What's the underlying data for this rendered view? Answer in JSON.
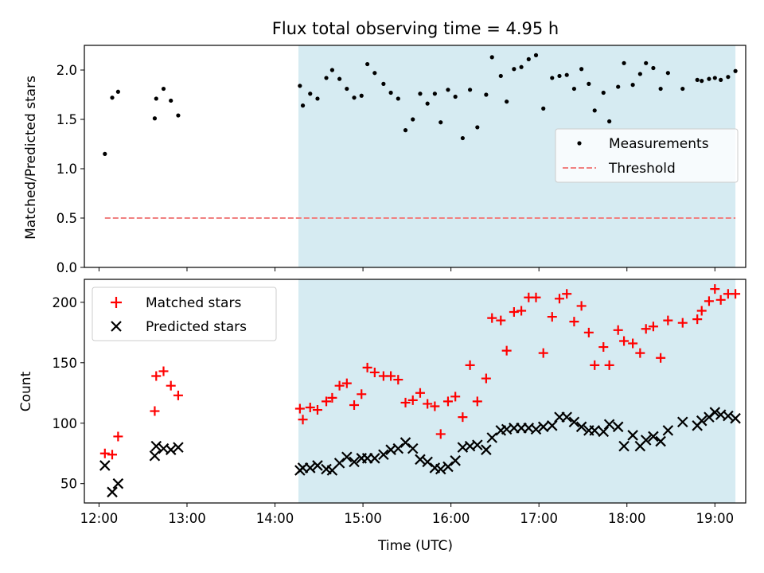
{
  "chart_data": [
    {
      "type": "scatter",
      "title": "Flux total observing time = 4.95 h",
      "xlabel": "",
      "ylabel": "Matched/Predicted stars",
      "xlim": [
        "11:50",
        "19:21"
      ],
      "ylim": [
        0,
        2.25
      ],
      "yticks": [
        "0.0",
        "0.5",
        "1.0",
        "1.5",
        "2.0"
      ],
      "grid": false,
      "legend_position": "center-right",
      "shaded_span": {
        "start": "14:16",
        "end": "19:14",
        "color": "#add8e6"
      },
      "series": [
        {
          "name": "Measurements",
          "marker": "dot",
          "color": "#000000",
          "points": [
            [
              "12:04",
              1.15
            ],
            [
              "12:09",
              1.72
            ],
            [
              "12:13",
              1.78
            ],
            [
              "12:38",
              1.51
            ],
            [
              "12:39",
              1.71
            ],
            [
              "12:44",
              1.81
            ],
            [
              "12:49",
              1.69
            ],
            [
              "12:54",
              1.54
            ],
            [
              "14:17",
              1.84
            ],
            [
              "14:19",
              1.64
            ],
            [
              "14:24",
              1.76
            ],
            [
              "14:29",
              1.71
            ],
            [
              "14:35",
              1.92
            ],
            [
              "14:39",
              2.0
            ],
            [
              "14:44",
              1.91
            ],
            [
              "14:49",
              1.81
            ],
            [
              "14:54",
              1.72
            ],
            [
              "14:59",
              1.74
            ],
            [
              "15:03",
              2.06
            ],
            [
              "15:08",
              1.97
            ],
            [
              "15:14",
              1.86
            ],
            [
              "15:19",
              1.77
            ],
            [
              "15:24",
              1.71
            ],
            [
              "15:29",
              1.39
            ],
            [
              "15:34",
              1.5
            ],
            [
              "15:39",
              1.76
            ],
            [
              "15:44",
              1.66
            ],
            [
              "15:49",
              1.76
            ],
            [
              "15:53",
              1.47
            ],
            [
              "15:58",
              1.8
            ],
            [
              "16:03",
              1.73
            ],
            [
              "16:08",
              1.31
            ],
            [
              "16:13",
              1.8
            ],
            [
              "16:18",
              1.42
            ],
            [
              "16:24",
              1.75
            ],
            [
              "16:28",
              2.13
            ],
            [
              "16:34",
              1.94
            ],
            [
              "16:38",
              1.68
            ],
            [
              "16:43",
              2.01
            ],
            [
              "16:48",
              2.03
            ],
            [
              "16:53",
              2.11
            ],
            [
              "16:58",
              2.15
            ],
            [
              "17:03",
              1.61
            ],
            [
              "17:09",
              1.92
            ],
            [
              "17:14",
              1.94
            ],
            [
              "17:19",
              1.95
            ],
            [
              "17:24",
              1.81
            ],
            [
              "17:29",
              2.01
            ],
            [
              "17:34",
              1.86
            ],
            [
              "17:38",
              1.59
            ],
            [
              "17:44",
              1.77
            ],
            [
              "17:48",
              1.48
            ],
            [
              "17:54",
              1.83
            ],
            [
              "17:58",
              2.07
            ],
            [
              "18:04",
              1.85
            ],
            [
              "18:09",
              1.96
            ],
            [
              "18:13",
              2.07
            ],
            [
              "18:18",
              2.02
            ],
            [
              "18:23",
              1.81
            ],
            [
              "18:28",
              1.97
            ],
            [
              "18:38",
              1.81
            ],
            [
              "18:48",
              1.9
            ],
            [
              "18:51",
              1.89
            ],
            [
              "18:56",
              1.91
            ],
            [
              "19:00",
              1.92
            ],
            [
              "19:04",
              1.9
            ],
            [
              "19:09",
              1.93
            ],
            [
              "19:14",
              1.99
            ]
          ]
        },
        {
          "name": "Threshold",
          "marker": "dashed-line",
          "color": "#f08080",
          "points": [
            [
              "12:04",
              0.5
            ],
            [
              "19:14",
              0.5
            ]
          ]
        }
      ]
    },
    {
      "type": "scatter",
      "title": "",
      "xlabel": "Time (UTC)",
      "ylabel": "Count",
      "xlim": [
        "11:50",
        "19:21"
      ],
      "ylim": [
        34,
        219
      ],
      "xticks": [
        "12:00",
        "13:00",
        "14:00",
        "15:00",
        "16:00",
        "17:00",
        "18:00",
        "19:00"
      ],
      "yticks": [
        "50",
        "100",
        "150",
        "200"
      ],
      "grid": false,
      "legend_position": "top-left",
      "shaded_span": {
        "start": "14:16",
        "end": "19:14",
        "color": "#add8e6"
      },
      "series": [
        {
          "name": "Matched stars",
          "marker": "plus",
          "color": "#ff0000",
          "points": [
            [
              "12:04",
              75
            ],
            [
              "12:09",
              74
            ],
            [
              "12:13",
              89
            ],
            [
              "12:38",
              110
            ],
            [
              "12:39",
              139
            ],
            [
              "12:44",
              143
            ],
            [
              "12:49",
              131
            ],
            [
              "12:54",
              123
            ],
            [
              "14:17",
              112
            ],
            [
              "14:19",
              103
            ],
            [
              "14:24",
              113
            ],
            [
              "14:29",
              111
            ],
            [
              "14:35",
              118
            ],
            [
              "14:39",
              121
            ],
            [
              "14:44",
              131
            ],
            [
              "14:49",
              133
            ],
            [
              "14:54",
              115
            ],
            [
              "14:59",
              124
            ],
            [
              "15:03",
              146
            ],
            [
              "15:08",
              142
            ],
            [
              "15:14",
              139
            ],
            [
              "15:19",
              139
            ],
            [
              "15:24",
              136
            ],
            [
              "15:29",
              117
            ],
            [
              "15:34",
              119
            ],
            [
              "15:39",
              125
            ],
            [
              "15:44",
              116
            ],
            [
              "15:49",
              114
            ],
            [
              "15:53",
              91
            ],
            [
              "15:58",
              118
            ],
            [
              "16:03",
              122
            ],
            [
              "16:08",
              105
            ],
            [
              "16:13",
              148
            ],
            [
              "16:18",
              118
            ],
            [
              "16:24",
              137
            ],
            [
              "16:28",
              187
            ],
            [
              "16:34",
              185
            ],
            [
              "16:38",
              160
            ],
            [
              "16:43",
              192
            ],
            [
              "16:48",
              193
            ],
            [
              "16:53",
              204
            ],
            [
              "16:58",
              204
            ],
            [
              "17:03",
              158
            ],
            [
              "17:09",
              188
            ],
            [
              "17:14",
              203
            ],
            [
              "17:19",
              207
            ],
            [
              "17:24",
              184
            ],
            [
              "17:29",
              197
            ],
            [
              "17:34",
              175
            ],
            [
              "17:38",
              148
            ],
            [
              "17:44",
              163
            ],
            [
              "17:48",
              148
            ],
            [
              "17:54",
              177
            ],
            [
              "17:58",
              168
            ],
            [
              "18:04",
              166
            ],
            [
              "18:09",
              158
            ],
            [
              "18:13",
              178
            ],
            [
              "18:18",
              180
            ],
            [
              "18:23",
              154
            ],
            [
              "18:28",
              185
            ],
            [
              "18:38",
              183
            ],
            [
              "18:48",
              186
            ],
            [
              "18:51",
              193
            ],
            [
              "18:56",
              201
            ],
            [
              "19:00",
              211
            ],
            [
              "19:04",
              202
            ],
            [
              "19:09",
              207
            ],
            [
              "19:14",
              207
            ]
          ]
        },
        {
          "name": "Predicted stars",
          "marker": "x",
          "color": "#000000",
          "points": [
            [
              "12:04",
              65
            ],
            [
              "12:09",
              43
            ],
            [
              "12:13",
              50
            ],
            [
              "12:38",
              73
            ],
            [
              "12:39",
              81
            ],
            [
              "12:44",
              79
            ],
            [
              "12:49",
              78
            ],
            [
              "12:54",
              80
            ],
            [
              "14:17",
              61
            ],
            [
              "14:19",
              63
            ],
            [
              "14:24",
              63
            ],
            [
              "14:29",
              65
            ],
            [
              "14:35",
              62
            ],
            [
              "14:39",
              61
            ],
            [
              "14:44",
              67
            ],
            [
              "14:49",
              72
            ],
            [
              "14:54",
              68
            ],
            [
              "14:59",
              71
            ],
            [
              "15:03",
              71
            ],
            [
              "15:08",
              71
            ],
            [
              "15:14",
              74
            ],
            [
              "15:19",
              78
            ],
            [
              "15:24",
              79
            ],
            [
              "15:29",
              84
            ],
            [
              "15:34",
              79
            ],
            [
              "15:39",
              70
            ],
            [
              "15:44",
              68
            ],
            [
              "15:49",
              63
            ],
            [
              "15:53",
              62
            ],
            [
              "15:58",
              64
            ],
            [
              "16:03",
              69
            ],
            [
              "16:08",
              80
            ],
            [
              "16:13",
              81
            ],
            [
              "16:18",
              82
            ],
            [
              "16:24",
              78
            ],
            [
              "16:28",
              88
            ],
            [
              "16:34",
              94
            ],
            [
              "16:38",
              95
            ],
            [
              "16:43",
              96
            ],
            [
              "16:48",
              96
            ],
            [
              "16:53",
              96
            ],
            [
              "16:58",
              95
            ],
            [
              "17:03",
              97
            ],
            [
              "17:09",
              98
            ],
            [
              "17:14",
              105
            ],
            [
              "17:19",
              105
            ],
            [
              "17:24",
              101
            ],
            [
              "17:29",
              97
            ],
            [
              "17:34",
              94
            ],
            [
              "17:38",
              94
            ],
            [
              "17:44",
              93
            ],
            [
              "17:48",
              99
            ],
            [
              "17:54",
              97
            ],
            [
              "17:58",
              81
            ],
            [
              "18:04",
              90
            ],
            [
              "18:09",
              81
            ],
            [
              "18:13",
              86
            ],
            [
              "18:18",
              89
            ],
            [
              "18:23",
              85
            ],
            [
              "18:28",
              94
            ],
            [
              "18:38",
              101
            ],
            [
              "18:48",
              98
            ],
            [
              "18:51",
              102
            ],
            [
              "18:56",
              105
            ],
            [
              "19:00",
              109
            ],
            [
              "19:04",
              107
            ],
            [
              "19:09",
              106
            ],
            [
              "19:14",
              104
            ]
          ]
        }
      ]
    }
  ]
}
